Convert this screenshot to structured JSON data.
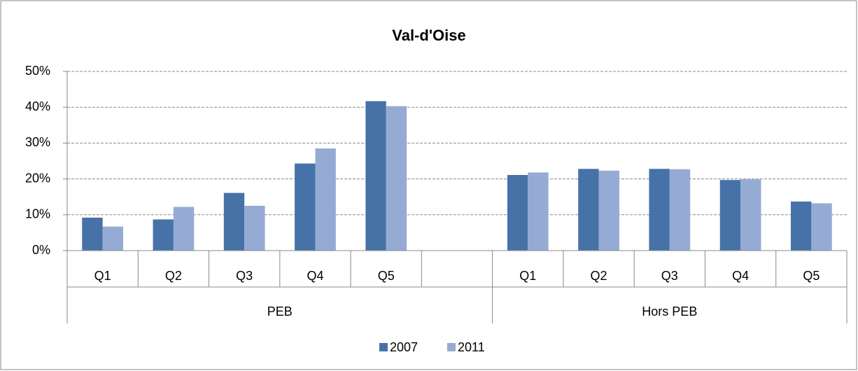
{
  "chart_data": {
    "type": "bar",
    "title": "Val-d'Oise",
    "groups": [
      {
        "name": "PEB",
        "categories": [
          "Q1",
          "Q2",
          "Q3",
          "Q4",
          "Q5",
          null
        ]
      },
      {
        "name": "Hors PEB",
        "categories": [
          "Q1",
          "Q2",
          "Q3",
          "Q4",
          "Q5"
        ]
      }
    ],
    "series": [
      {
        "name": "2007",
        "color": "#4672a8",
        "values": [
          9.2,
          8.7,
          16.1,
          24.3,
          41.7,
          null,
          21.1,
          22.8,
          22.8,
          19.7,
          13.7
        ]
      },
      {
        "name": "2011",
        "color": "#95abd3",
        "values": [
          6.7,
          12.2,
          12.5,
          28.5,
          40.3,
          null,
          21.8,
          22.3,
          22.7,
          19.9,
          13.2
        ]
      }
    ],
    "ylim": [
      0,
      50
    ],
    "yticks": [
      {
        "value": 0,
        "label": "0%"
      },
      {
        "value": 10,
        "label": "10%"
      },
      {
        "value": 20,
        "label": "20%"
      },
      {
        "value": 30,
        "label": "30%"
      },
      {
        "value": 40,
        "label": "40%"
      },
      {
        "value": 50,
        "label": "50%"
      }
    ],
    "grid": true,
    "legend": "bottom"
  }
}
